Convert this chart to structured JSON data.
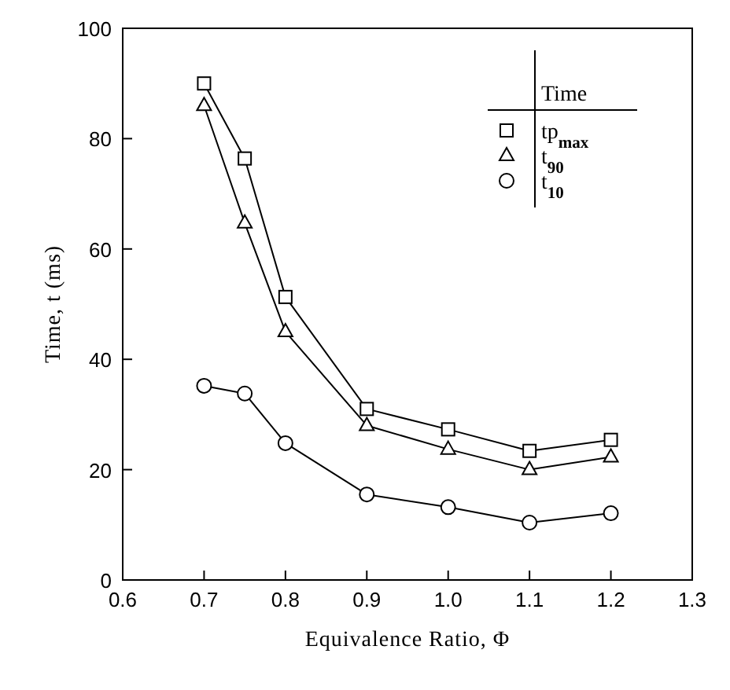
{
  "chart_data": {
    "type": "line",
    "xlabel": "Equivalence Ratio, Φ",
    "ylabel": "Time, t (ms)",
    "legend_title": "Time",
    "legend": "top right",
    "line_style": "solid",
    "x": [
      0.7,
      0.75,
      0.8,
      0.9,
      1.0,
      1.1,
      1.2
    ],
    "xlim": [
      0.6,
      1.3
    ],
    "xticks": [
      {
        "value": 0.6,
        "label": "0.6"
      },
      {
        "value": 0.7,
        "label": "0.7"
      },
      {
        "value": 0.8,
        "label": "0.8"
      },
      {
        "value": 0.9,
        "label": "0.9"
      },
      {
        "value": 1.0,
        "label": "1.0"
      },
      {
        "value": 1.1,
        "label": "1.1"
      },
      {
        "value": 1.2,
        "label": "1.2"
      },
      {
        "value": 1.3,
        "label": "1.3"
      }
    ],
    "ylim": [
      0,
      100
    ],
    "yticks": [
      0,
      20,
      40,
      60,
      80,
      100
    ],
    "series": [
      {
        "name": "tp$_{max}$",
        "color": "#000000",
        "marker": "square",
        "values": [
          90,
          76.4,
          51.3,
          31,
          27.3,
          23.4,
          25.4
        ]
      },
      {
        "name": "t$_{90}$",
        "color": "#000000",
        "marker": "triangle",
        "values": [
          86,
          64.7,
          45,
          28,
          23.7,
          20,
          22.3
        ]
      },
      {
        "name": "t$_{10}$",
        "color": "#000000",
        "marker": "circle",
        "values": [
          35.2,
          33.8,
          24.8,
          15.5,
          13.2,
          10.4,
          12.1
        ]
      }
    ]
  }
}
